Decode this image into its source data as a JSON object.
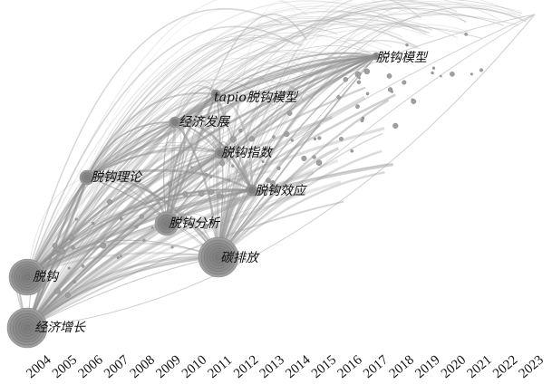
{
  "timeline": {
    "years": [
      "2004",
      "2005",
      "2006",
      "2007",
      "2008",
      "2009",
      "2010",
      "2011",
      "2012",
      "2013",
      "2014",
      "2015",
      "2016",
      "2017",
      "2018",
      "2019",
      "2020",
      "2021",
      "2022",
      "2023"
    ]
  },
  "keywords": [
    {
      "id": "decoupling",
      "label": "脱钩",
      "year": "2004",
      "freq_rank": 2
    },
    {
      "id": "economic-growth",
      "label": "经济增长",
      "year": "2004",
      "freq_rank": 1
    },
    {
      "id": "decoupling-theory",
      "label": "脱钩理论",
      "year": "2007",
      "freq_rank": 8
    },
    {
      "id": "economic-development",
      "label": "经济发展",
      "year": "2012",
      "freq_rank": 9
    },
    {
      "id": "tapio-model",
      "label": "tapio脱钩模型",
      "year": "2014",
      "freq_rank": 10
    },
    {
      "id": "decoupling-analysis",
      "label": "脱钩分析",
      "year": "2011",
      "freq_rank": 5
    },
    {
      "id": "decoupling-index",
      "label": "脱钩指数",
      "year": "2015",
      "freq_rank": 7
    },
    {
      "id": "decoupling-effect",
      "label": "脱钩效应",
      "year": "2017",
      "freq_rank": 6
    },
    {
      "id": "carbon-emission",
      "label": "碳排放",
      "year": "2015",
      "freq_rank": 3
    },
    {
      "id": "decoupling-model",
      "label": "脱钩模型",
      "year": "2022",
      "freq_rank": 11
    }
  ],
  "colors": {
    "background": "#ffffff",
    "link": "#9a9a9a",
    "node_fill": "#8a8a8a",
    "node_ring": "#6e6e6e",
    "label": "#111111"
  }
}
